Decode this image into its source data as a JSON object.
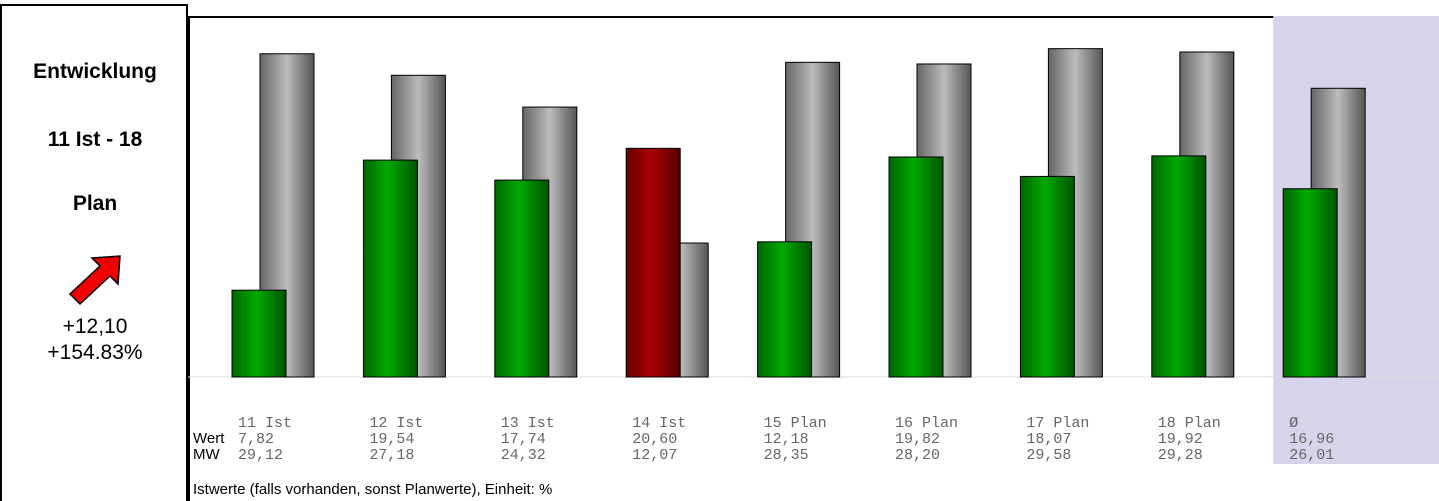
{
  "summary": {
    "title_line1": "Entwicklung",
    "title_line2": "11 Ist - 18",
    "title_line3": "Plan",
    "change_abs": "+12,10",
    "change_pct": "+154.83%",
    "trend_icon": "arrow-up-right-icon"
  },
  "colors": {
    "ist_good": "#009900",
    "ist_bad": "#990000",
    "plan": "#999999",
    "avg_highlight": "#d6d4ea"
  },
  "chart_data": {
    "type": "bar",
    "row_labels": {
      "wert": "Wert",
      "mw": "MW"
    },
    "caption": "Istwerte (falls vorhanden, sonst Planwerte), Einheit: %",
    "categories": [
      "11 Ist",
      "12 Ist",
      "13 Ist",
      "14 Ist",
      "15 Plan",
      "16 Plan",
      "17 Plan",
      "18 Plan",
      "Ø"
    ],
    "series": [
      {
        "name": "Wert",
        "values": [
          7.82,
          19.54,
          17.74,
          20.6,
          12.18,
          19.82,
          18.07,
          19.92,
          16.96
        ],
        "labels": [
          "7,82",
          "19,54",
          "17,74",
          "20,60",
          "12,18",
          "19,82",
          "18,07",
          "19,92",
          "16,96"
        ]
      },
      {
        "name": "MW",
        "values": [
          29.12,
          27.18,
          24.32,
          12.07,
          28.35,
          28.2,
          29.58,
          29.28,
          26.01
        ],
        "labels": [
          "29,12",
          "27,18",
          "24,32",
          "12,07",
          "28,35",
          "28,20",
          "29,58",
          "29,28",
          "26,01"
        ]
      }
    ],
    "bar_status": [
      "good",
      "good",
      "good",
      "bad",
      "good",
      "good",
      "good",
      "good",
      "good"
    ],
    "ylim": [
      0,
      30
    ],
    "grid": false,
    "highlight_category": "Ø"
  }
}
